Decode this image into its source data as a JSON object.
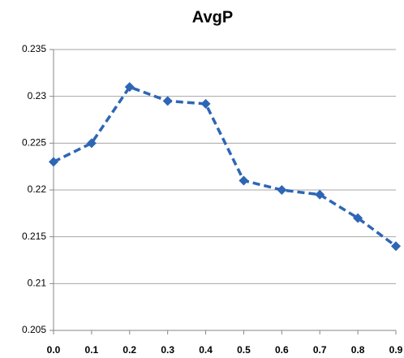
{
  "chart_data": {
    "type": "line",
    "title": "AvgP",
    "x": [
      0,
      0.1,
      0.2,
      0.3,
      0.4,
      0.5,
      0.6,
      0.7,
      0.8,
      0.9
    ],
    "series": [
      {
        "name": "AvgP",
        "color": "#2e66b5",
        "values": [
          0.223,
          0.225,
          0.231,
          0.2295,
          0.2292,
          0.221,
          0.22,
          0.2195,
          0.217,
          0.214
        ]
      }
    ],
    "xlim": [
      0,
      0.9
    ],
    "xticks": [
      {
        "value": 0,
        "label": "0.0"
      },
      {
        "value": 0.1,
        "label": "0.1"
      },
      {
        "value": 0.2,
        "label": "0.2"
      },
      {
        "value": 0.3,
        "label": "0.3"
      },
      {
        "value": 0.4,
        "label": "0.4"
      },
      {
        "value": 0.5,
        "label": "0.5"
      },
      {
        "value": 0.6,
        "label": "0.6"
      },
      {
        "value": 0.7,
        "label": "0.7"
      },
      {
        "value": 0.8,
        "label": "0.8"
      },
      {
        "value": 0.9,
        "label": "0.9"
      }
    ],
    "ylim": [
      0.205,
      0.235
    ],
    "yticks": [
      0.205,
      0.21,
      0.215,
      0.22,
      0.225,
      0.23,
      0.235
    ],
    "grid": true
  }
}
